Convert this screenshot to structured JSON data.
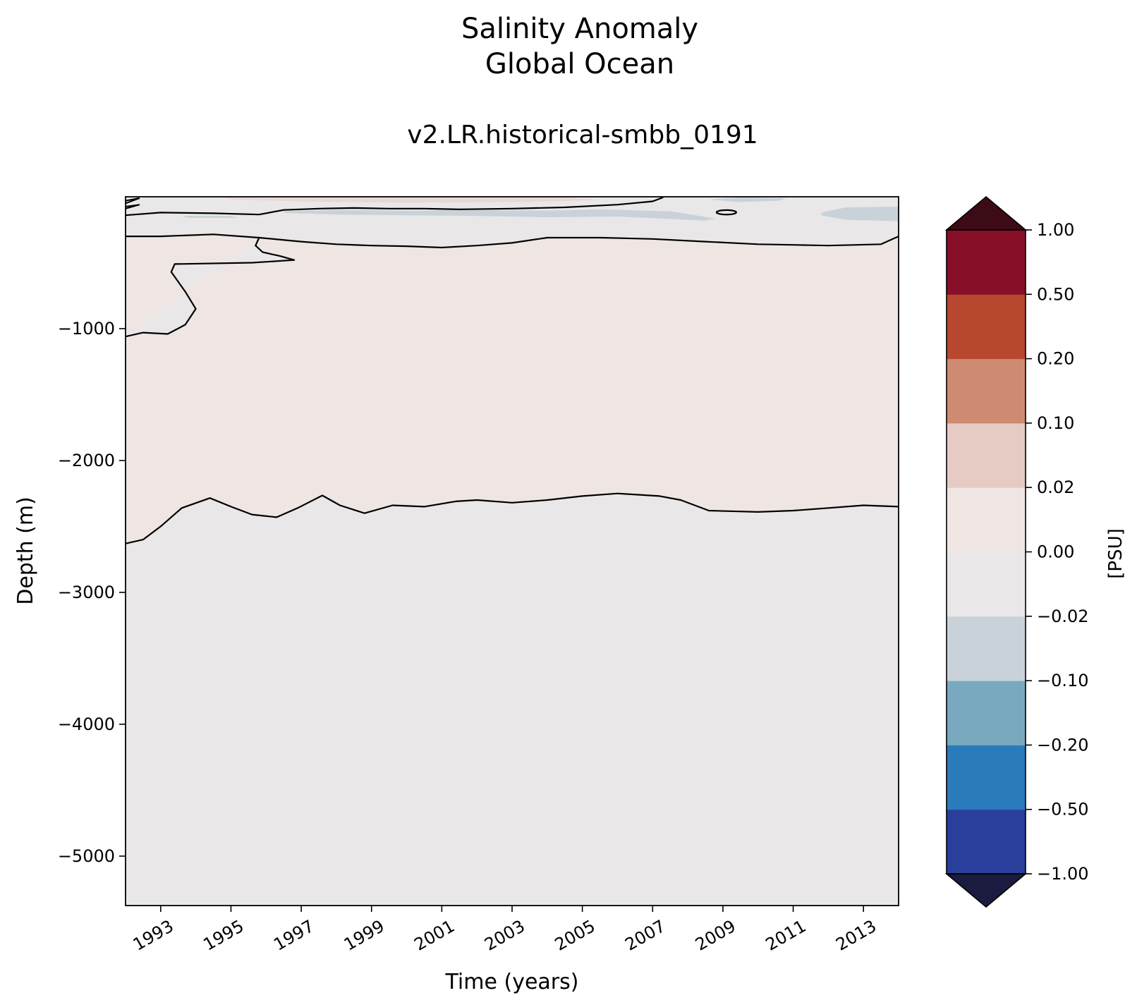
{
  "figure": {
    "title_line1": "Salinity Anomaly",
    "title_line2": "Global Ocean",
    "subtitle": "v2.LR.historical-smbb_0191"
  },
  "chart_data": {
    "type": "contour",
    "title": "Salinity Anomaly Global Ocean",
    "subtitle": "v2.LR.historical-smbb_0191",
    "xlabel": "Time (years)",
    "ylabel": "Depth (m)",
    "xlim": [
      1992.0,
      2014.0
    ],
    "ylim": [
      -5375,
      0
    ],
    "x_ticks": [
      1993,
      1995,
      1997,
      1999,
      2001,
      2003,
      2005,
      2007,
      2009,
      2011,
      2013
    ],
    "x_tick_labels": [
      "1993",
      "1995",
      "1997",
      "1999",
      "2001",
      "2003",
      "2005",
      "2007",
      "2009",
      "2011",
      "2013"
    ],
    "y_ticks": [
      -1000,
      -2000,
      -3000,
      -4000,
      -5000
    ],
    "y_tick_labels": [
      "−1000",
      "−2000",
      "−3000",
      "−4000",
      "−5000"
    ],
    "grid": false,
    "colorbar": {
      "label": "[PSU]",
      "levels": [
        -1.0,
        -0.5,
        -0.2,
        -0.1,
        -0.02,
        0.0,
        0.02,
        0.1,
        0.2,
        0.5,
        1.0
      ],
      "tick_labels": [
        "−1.00",
        "−0.50",
        "−0.20",
        "−0.10",
        "−0.02",
        "0.00",
        "0.02",
        "0.10",
        "0.20",
        "0.50",
        "1.00"
      ],
      "colors": [
        "#2a3f9b",
        "#2a7bbb",
        "#78a9bf",
        "#c9d2d9",
        "#e9e7e8",
        "#efe6e4",
        "#e6cbc4",
        "#cf8b72",
        "#b7472f",
        "#870f28"
      ],
      "under_color": "#1b1b40",
      "over_color": "#3d0b16",
      "extend": "both"
    },
    "fill_colors": {
      "deep_layer": "#e9e7e8",
      "mid_layer": "#efe6e4",
      "fresh_patch": "#c9d2d9",
      "salty_patch": "#e6cbc4"
    },
    "contours": [
      {
        "name": "zero_line_deep",
        "level": 0.0,
        "x": [
          1992.0,
          1992.5,
          1993.0,
          1993.6,
          1994.4,
          1995.0,
          1995.6,
          1996.3,
          1996.9,
          1997.6,
          1998.1,
          1998.8,
          1999.6,
          2000.5,
          2001.4,
          2002.0,
          2003.0,
          2004.0,
          2005.0,
          2006.0,
          2007.2,
          2007.8,
          2008.6,
          2010.0,
          2011.0,
          2012.0,
          2013.0,
          2014.0
        ],
        "y": [
          -2630,
          -2600,
          -2500,
          -2360,
          -2285,
          -2350,
          -2410,
          -2430,
          -2360,
          -2265,
          -2340,
          -2400,
          -2340,
          -2350,
          -2310,
          -2300,
          -2320,
          -2300,
          -2270,
          -2250,
          -2270,
          -2300,
          -2380,
          -2390,
          -2380,
          -2360,
          -2340,
          -2350
        ]
      },
      {
        "name": "zero_line_upper",
        "level": 0.0,
        "x": [
          1992.0,
          1993.0,
          1994.5,
          1995.8,
          1995.7,
          1995.9,
          1996.4,
          1996.8,
          1995.6,
          1993.4,
          1993.3,
          1993.7,
          1994.0,
          1993.7,
          1993.2,
          1992.5,
          1992.0
        ],
        "y": [
          -300,
          -300,
          -285,
          -310,
          -370,
          -420,
          -450,
          -480,
          -500,
          -510,
          -570,
          -720,
          -850,
          -970,
          -1040,
          -1030,
          -1060
        ]
      },
      {
        "name": "zero_line_shallow",
        "level": 0.0,
        "x": [
          1995.8,
          1997.0,
          1998.0,
          1999.0,
          2000.0,
          2001.0,
          2002.0,
          2003.0,
          2004.0,
          2005.5,
          2007.0,
          2008.5,
          2010.0,
          2011.0,
          2012.0,
          2013.5,
          2014.0
        ],
        "y": [
          -310,
          -340,
          -360,
          -370,
          -375,
          -385,
          -370,
          -350,
          -310,
          -310,
          -320,
          -340,
          -360,
          -365,
          -370,
          -360,
          -300
        ]
      },
      {
        "name": "near_surface_line",
        "level": 0.0,
        "x": [
          1992.0,
          1993.0,
          1994.5,
          1995.8,
          1996.5,
          1997.5,
          1998.5,
          1999.5,
          2000.5,
          2001.5,
          2003.0,
          2004.5,
          2006.0,
          2007.0,
          2007.3
        ],
        "y": [
          -140,
          -120,
          -125,
          -135,
          -100,
          -90,
          -85,
          -90,
          -90,
          -95,
          -90,
          -80,
          -60,
          -35,
          -5
        ]
      }
    ]
  }
}
